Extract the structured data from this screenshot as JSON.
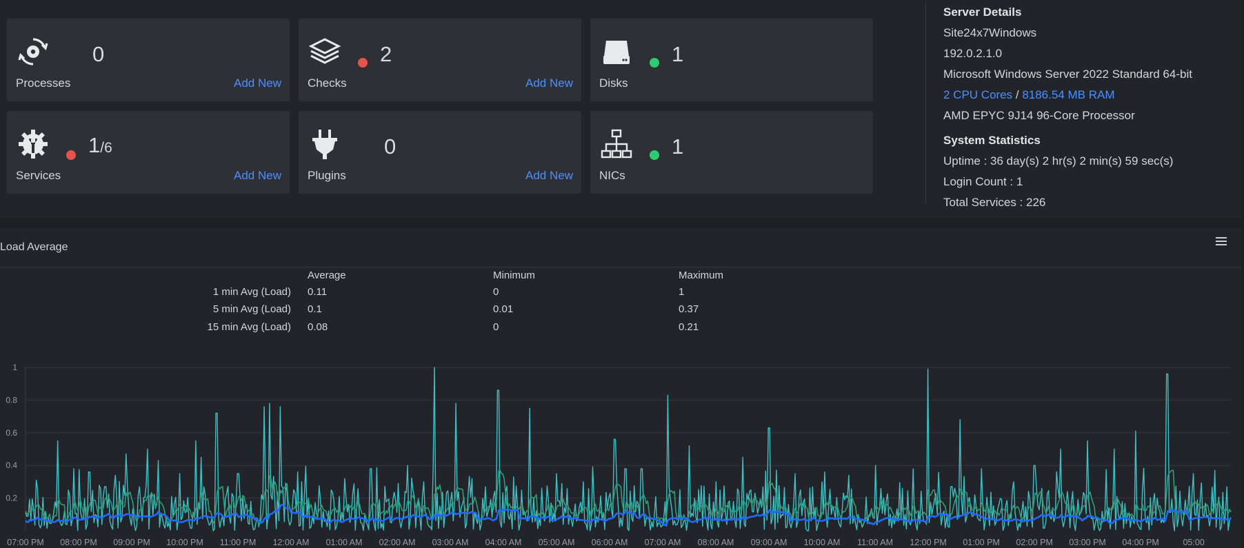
{
  "cards": [
    {
      "label": "Processes",
      "count": "0",
      "sub": "",
      "status": "",
      "add": "Add New",
      "icon": "gear-cycle-icon"
    },
    {
      "label": "Checks",
      "count": "2",
      "sub": "",
      "status": "#e5534b",
      "add": "Add New",
      "icon": "layers-icon"
    },
    {
      "label": "Disks",
      "count": "1",
      "sub": "",
      "status": "#2ecc71",
      "add": "",
      "icon": "hard-drive-icon"
    },
    {
      "label": "Services",
      "count": "1",
      "sub": "/6",
      "status": "#e5534b",
      "add": "Add New",
      "icon": "gear-wrench-icon"
    },
    {
      "label": "Plugins",
      "count": "0",
      "sub": "",
      "status": "",
      "add": "Add New",
      "icon": "plug-icon"
    },
    {
      "label": "NICs",
      "count": "1",
      "sub": "",
      "status": "#2ecc71",
      "add": "",
      "icon": "network-icon"
    }
  ],
  "server_details": {
    "heading": "Server Details",
    "hostname": "Site24x7Windows",
    "ip": "192.0.2.1.0",
    "os": "Microsoft Windows Server 2022 Standard  64-bit",
    "cpu": "2 CPU Cores",
    "separator": " / ",
    "ram": "8186.54 MB RAM",
    "processor": "AMD EPYC 9J14 96-Core Processor"
  },
  "system_statistics": {
    "heading": "System Statistics",
    "uptime": "Uptime : 36 day(s) 2 hr(s) 2 min(s) 59 sec(s)",
    "login_count": "Login Count : 1",
    "total_services": "Total Services : 226"
  },
  "load_average": {
    "title": "Load Average",
    "headers": [
      "Average",
      "Minimum",
      "Maximum"
    ],
    "rows": [
      {
        "label": "1 min Avg (Load)",
        "avg": "0.11",
        "min": "0",
        "max": "1"
      },
      {
        "label": "5 min Avg (Load)",
        "avg": "0.1",
        "min": "0.01",
        "max": "0.37"
      },
      {
        "label": "15 min Avg (Load)",
        "avg": "0.08",
        "min": "0",
        "max": "0.21"
      }
    ]
  },
  "colors": {
    "accent_link": "#4a90ff",
    "series_1min": "#3ec1c6",
    "series_5min": "#2e9e78",
    "series_15min": "#1f6bff"
  },
  "chart_data": {
    "type": "line",
    "title": "",
    "xlabel": "",
    "ylabel": "",
    "ylim": [
      0,
      1
    ],
    "yticks": [
      "0.2",
      "0.4",
      "0.6",
      "0.8",
      "1"
    ],
    "grid": true,
    "x_ticks": [
      "07:00 PM",
      "08:00 PM",
      "09:00 PM",
      "10:00 PM",
      "11:00 PM",
      "12:00 AM",
      "01:00 AM",
      "02:00 AM",
      "03:00 AM",
      "04:00 AM",
      "05:00 AM",
      "06:00 AM",
      "07:00 AM",
      "08:00 AM",
      "09:00 AM",
      "10:00 AM",
      "11:00 AM",
      "12:00 PM",
      "01:00 PM",
      "02:00 PM",
      "03:00 PM",
      "04:00 PM",
      "05:00"
    ],
    "hours_span": 22.7,
    "series": [
      {
        "name": "1 min Avg (Load)",
        "key": "1min",
        "spikes": [
          [
            0.2,
            0.31
          ],
          [
            0.6,
            0.55
          ],
          [
            0.9,
            0.38
          ],
          [
            1.2,
            0.36
          ],
          [
            1.5,
            0.27
          ],
          [
            1.9,
            0.47
          ],
          [
            2.3,
            0.5
          ],
          [
            2.5,
            0.43
          ],
          [
            2.9,
            0.35
          ],
          [
            3.2,
            0.55
          ],
          [
            3.3,
            0.45
          ],
          [
            3.6,
            0.72
          ],
          [
            4.0,
            0.35
          ],
          [
            4.5,
            0.76
          ],
          [
            4.6,
            0.78
          ],
          [
            4.8,
            0.76
          ],
          [
            5.2,
            0.3
          ],
          [
            6.0,
            0.32
          ],
          [
            6.5,
            0.38
          ],
          [
            7.2,
            0.4
          ],
          [
            7.5,
            0.3
          ],
          [
            7.7,
            1.0
          ],
          [
            8.1,
            0.78
          ],
          [
            8.4,
            0.32
          ],
          [
            8.9,
            0.86
          ],
          [
            9.2,
            0.33
          ],
          [
            9.5,
            0.75
          ],
          [
            10.0,
            0.35
          ],
          [
            10.5,
            0.3
          ],
          [
            11.1,
            0.56
          ],
          [
            11.3,
            0.38
          ],
          [
            11.6,
            0.38
          ],
          [
            12.1,
            0.83
          ],
          [
            12.5,
            0.52
          ],
          [
            13.0,
            0.3
          ],
          [
            13.5,
            0.45
          ],
          [
            14.0,
            0.63
          ],
          [
            14.5,
            0.35
          ],
          [
            15.0,
            0.3
          ],
          [
            15.5,
            0.34
          ],
          [
            16.0,
            0.4
          ],
          [
            17.0,
            0.99
          ],
          [
            17.6,
            0.68
          ],
          [
            18.0,
            0.38
          ],
          [
            18.6,
            0.3
          ],
          [
            19.0,
            0.4
          ],
          [
            19.5,
            0.5
          ],
          [
            20.0,
            0.55
          ],
          [
            20.5,
            0.5
          ],
          [
            20.9,
            0.61
          ],
          [
            21.5,
            0.96
          ],
          [
            22.0,
            0.35
          ],
          [
            22.4,
            0.37
          ]
        ]
      },
      {
        "name": "5 min Avg (Load)",
        "key": "5min"
      },
      {
        "name": "15 min Avg (Load)",
        "key": "15min"
      }
    ]
  }
}
